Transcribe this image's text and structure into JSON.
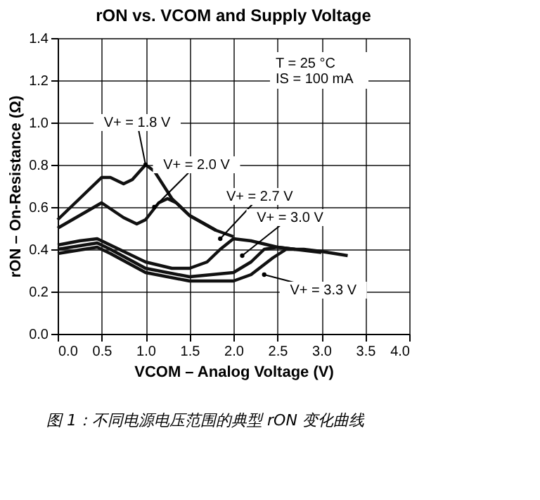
{
  "chart_data": {
    "type": "line",
    "title": "rON vs. VCOM and Supply Voltage",
    "xlabel": "VCOM – Analog Voltage (V)",
    "ylabel": "rON – On-Resistance (Ω)",
    "xlim": [
      0,
      4
    ],
    "ylim": [
      0,
      1.4
    ],
    "xticks": [
      {
        "value": 0,
        "label": "0.0"
      },
      {
        "value": 0.5,
        "label": "0.5"
      },
      {
        "value": 1,
        "label": "1.0"
      },
      {
        "value": 1.5,
        "label": "1.5"
      },
      {
        "value": 2,
        "label": "2.0"
      },
      {
        "value": 2.5,
        "label": "2.5"
      },
      {
        "value": 3,
        "label": "3.0"
      },
      {
        "value": 3.5,
        "label": "3.5"
      },
      {
        "value": 4,
        "label": "4.0"
      }
    ],
    "yticks": [
      {
        "value": 0,
        "label": "0.0"
      },
      {
        "value": 0.2,
        "label": "0.2"
      },
      {
        "value": 0.4,
        "label": "0.4"
      },
      {
        "value": 0.6,
        "label": "0.6"
      },
      {
        "value": 0.8,
        "label": "0.8"
      },
      {
        "value": 1,
        "label": "1.0"
      },
      {
        "value": 1.2,
        "label": "1.2"
      },
      {
        "value": 1.4,
        "label": "1.4"
      }
    ],
    "grid": true,
    "legend": false,
    "marker": "none",
    "line_style": "solid",
    "series": [
      {
        "color": "#111111",
        "x": [
          0,
          0.25,
          0.5,
          0.6,
          0.75,
          0.85,
          1.0,
          1.1,
          1.3,
          1.5,
          1.8
        ],
        "values": [
          0.54,
          0.64,
          0.74,
          0.74,
          0.71,
          0.73,
          0.8,
          0.77,
          0.64,
          0.56,
          0.49
        ]
      },
      {
        "color": "#111111",
        "x": [
          0,
          0.25,
          0.5,
          0.75,
          0.9,
          1.0,
          1.15,
          1.25,
          1.35,
          1.5,
          1.8,
          2.0
        ],
        "values": [
          0.5,
          0.56,
          0.62,
          0.55,
          0.52,
          0.54,
          0.62,
          0.64,
          0.62,
          0.56,
          0.49,
          0.46
        ]
      },
      {
        "color": "#111111",
        "x": [
          0,
          0.25,
          0.45,
          0.6,
          1.0,
          1.3,
          1.5,
          1.7,
          1.85,
          2.0,
          2.2,
          2.5,
          2.7
        ],
        "values": [
          0.42,
          0.44,
          0.45,
          0.42,
          0.34,
          0.31,
          0.31,
          0.34,
          0.4,
          0.45,
          0.44,
          0.41,
          0.4
        ]
      },
      {
        "color": "#111111",
        "x": [
          0,
          0.45,
          0.6,
          1.0,
          1.5,
          2.0,
          2.2,
          2.35,
          2.5,
          2.7,
          3.0
        ],
        "values": [
          0.4,
          0.43,
          0.4,
          0.31,
          0.27,
          0.29,
          0.34,
          0.4,
          0.41,
          0.4,
          0.385
        ]
      },
      {
        "color": "#111111",
        "x": [
          0,
          0.45,
          0.6,
          1.0,
          1.5,
          2.0,
          2.2,
          2.45,
          2.6,
          2.8,
          3.0,
          3.3
        ],
        "values": [
          0.38,
          0.41,
          0.38,
          0.29,
          0.25,
          0.25,
          0.28,
          0.36,
          0.4,
          0.4,
          0.39,
          0.37
        ]
      }
    ],
    "annotations": [
      {
        "text": "V+ = 1.8 V",
        "x": 1.0,
        "y": 0.8
      },
      {
        "text": "V+ = 2.0 V",
        "x": 1.1,
        "y": 0.6
      },
      {
        "text": "V+ = 2.7 V",
        "x": 1.85,
        "y": 0.45
      },
      {
        "text": "V+ = 3.0 V",
        "x": 2.1,
        "y": 0.37
      },
      {
        "text": "V+ = 3.3 V",
        "x": 2.35,
        "y": 0.28
      },
      "T = 25 °C",
      "IS = 100 mA",
      "图 1：不同电源电压范围的典型 rON 变化曲线"
    ]
  }
}
